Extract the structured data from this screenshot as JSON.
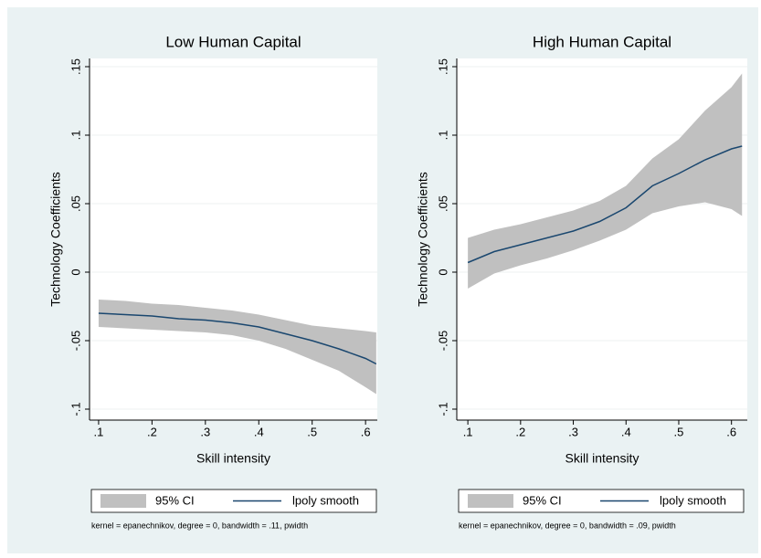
{
  "chart_data": [
    {
      "type": "line",
      "title": "Low Human Capital",
      "x_label": "Skill intensity",
      "y_label": "Technology Coefficients",
      "note": "kernel = epanechnikov, degree = 0, bandwidth = .11, pwidth",
      "x": [
        0.1,
        0.15,
        0.2,
        0.25,
        0.3,
        0.35,
        0.4,
        0.45,
        0.5,
        0.55,
        0.6,
        0.62
      ],
      "series": [
        {
          "name": "95% CI",
          "color": "#c0c0c0",
          "lower": [
            -0.04,
            -0.041,
            -0.042,
            -0.043,
            -0.044,
            -0.046,
            -0.05,
            -0.056,
            -0.064,
            -0.072,
            -0.084,
            -0.089
          ],
          "upper": [
            -0.02,
            -0.021,
            -0.023,
            -0.024,
            -0.026,
            -0.028,
            -0.031,
            -0.035,
            -0.039,
            -0.041,
            -0.043,
            -0.044
          ]
        },
        {
          "name": "lpoly smooth",
          "color": "#1a476f",
          "values": [
            -0.03,
            -0.031,
            -0.032,
            -0.034,
            -0.035,
            -0.037,
            -0.04,
            -0.045,
            -0.05,
            -0.056,
            -0.063,
            -0.067
          ]
        }
      ],
      "xlim": [
        0.083,
        0.622
      ],
      "ylim": [
        -0.108,
        0.156
      ],
      "xticks": [
        {
          "value": 0.1,
          "label": ".1"
        },
        {
          "value": 0.2,
          "label": ".2"
        },
        {
          "value": 0.3,
          "label": ".3"
        },
        {
          "value": 0.4,
          "label": ".4"
        },
        {
          "value": 0.5,
          "label": ".5"
        },
        {
          "value": 0.6,
          "label": ".6"
        }
      ],
      "yticks": [
        {
          "value": -0.1,
          "label": "-.1"
        },
        {
          "value": -0.05,
          "label": "-.05"
        },
        0,
        {
          "value": 0.05,
          "label": ".05"
        },
        {
          "value": 0.1,
          "label": ".1"
        },
        {
          "value": 0.15,
          "label": ".15"
        }
      ],
      "grid": true
    },
    {
      "type": "line",
      "title": "High Human Capital",
      "x_label": "Skill intensity",
      "y_label": "Technology Coefficients",
      "note": "kernel = epanechnikov, degree = 0, bandwidth = .09, pwidth",
      "x": [
        0.1,
        0.15,
        0.2,
        0.25,
        0.3,
        0.35,
        0.4,
        0.45,
        0.5,
        0.55,
        0.6,
        0.62
      ],
      "series": [
        {
          "name": "95% CI",
          "color": "#c0c0c0",
          "lower": [
            -0.012,
            -0.001,
            0.005,
            0.01,
            0.016,
            0.023,
            0.031,
            0.043,
            0.048,
            0.051,
            0.046,
            0.041
          ],
          "upper": [
            0.025,
            0.031,
            0.035,
            0.04,
            0.045,
            0.052,
            0.063,
            0.083,
            0.097,
            0.118,
            0.135,
            0.145
          ]
        },
        {
          "name": "lpoly smooth",
          "color": "#1a476f",
          "values": [
            0.007,
            0.015,
            0.02,
            0.025,
            0.03,
            0.037,
            0.047,
            0.063,
            0.072,
            0.082,
            0.09,
            0.092
          ]
        }
      ],
      "xlim": [
        0.079,
        0.63
      ],
      "ylim": [
        -0.108,
        0.156
      ],
      "xticks": [
        {
          "value": 0.1,
          "label": ".1"
        },
        {
          "value": 0.2,
          "label": ".2"
        },
        {
          "value": 0.3,
          "label": ".3"
        },
        {
          "value": 0.4,
          "label": ".4"
        },
        {
          "value": 0.5,
          "label": ".5"
        },
        {
          "value": 0.6,
          "label": ".6"
        }
      ],
      "yticks": [
        {
          "value": -0.1,
          "label": "-.1"
        },
        {
          "value": -0.05,
          "label": "-.05"
        },
        0,
        {
          "value": 0.05,
          "label": ".05"
        },
        {
          "value": 0.1,
          "label": ".1"
        },
        {
          "value": 0.15,
          "label": ".15"
        }
      ],
      "grid": true
    }
  ]
}
